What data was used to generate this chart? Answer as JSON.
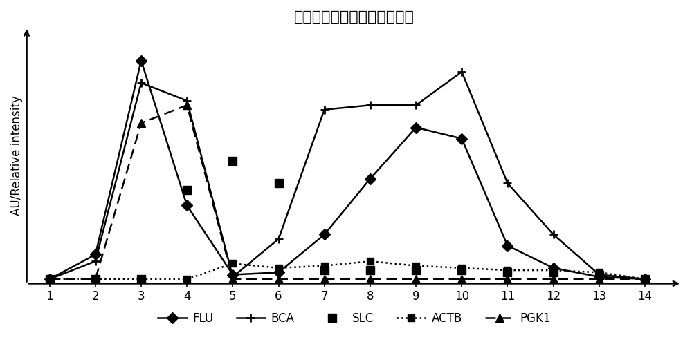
{
  "title": "荧光脂质体示踪的排阻色谱法",
  "ylabel": "AU/Relative intensity",
  "x": [
    1,
    2,
    3,
    4,
    5,
    6,
    7,
    8,
    9,
    10,
    11,
    12,
    13,
    14
  ],
  "FLU": [
    0.02,
    0.13,
    1.0,
    0.35,
    0.04,
    0.05,
    0.22,
    0.47,
    0.7,
    0.65,
    0.17,
    0.07,
    0.03,
    0.02
  ],
  "BCA": [
    0.02,
    0.1,
    0.9,
    0.82,
    0.03,
    0.2,
    0.78,
    0.8,
    0.8,
    0.95,
    0.45,
    0.22,
    0.04,
    0.02
  ],
  "SLC": [
    0.02,
    0.02,
    0.02,
    0.42,
    0.55,
    0.45,
    0.06,
    0.06,
    0.06,
    0.06,
    0.05,
    0.05,
    0.04,
    0.02
  ],
  "ACTB": [
    0.02,
    0.02,
    0.02,
    0.02,
    0.09,
    0.07,
    0.08,
    0.1,
    0.08,
    0.07,
    0.06,
    0.06,
    0.05,
    0.02
  ],
  "PGK1": [
    0.02,
    0.02,
    0.72,
    0.8,
    0.02,
    0.02,
    0.02,
    0.02,
    0.02,
    0.02,
    0.02,
    0.02,
    0.02,
    0.02
  ],
  "color": "#000000",
  "ylim": [
    0.0,
    1.15
  ],
  "xlim": [
    0.5,
    14.8
  ]
}
